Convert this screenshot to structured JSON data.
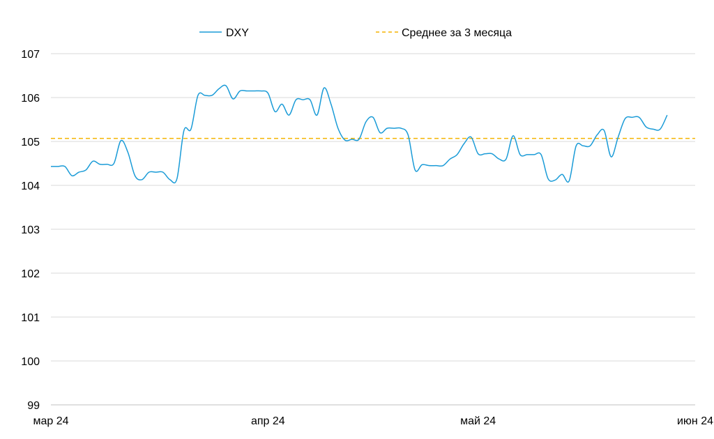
{
  "chart_data": {
    "type": "line",
    "title": "",
    "xlabel": "",
    "ylabel": "",
    "ylim": [
      99,
      107
    ],
    "yticks": [
      99,
      100,
      101,
      102,
      103,
      104,
      105,
      106,
      107
    ],
    "ytick_labels": [
      "99",
      "100",
      "101",
      "102",
      "103",
      "104",
      "105",
      "106",
      "107"
    ],
    "xlim": [
      "2024-03-01",
      "2024-06-01"
    ],
    "xticks": [
      {
        "label": "мар 24",
        "date": "2024-03-01"
      },
      {
        "label": "апр 24",
        "date": "2024-04-01"
      },
      {
        "label": "май 24",
        "date": "2024-05-01"
      },
      {
        "label": "июн 24",
        "date": "2024-06-01"
      }
    ],
    "grid": true,
    "legend_position": "top-center",
    "colors": {
      "dxy": "#1a9bd7",
      "average": "#f5b400",
      "grid": "#d9d9d9"
    },
    "series": [
      {
        "name": "DXY",
        "style": "solid",
        "x": [
          "2024-03-01",
          "2024-03-02",
          "2024-03-03",
          "2024-03-04",
          "2024-03-05",
          "2024-03-06",
          "2024-03-07",
          "2024-03-08",
          "2024-03-09",
          "2024-03-10",
          "2024-03-11",
          "2024-03-12",
          "2024-03-13",
          "2024-03-14",
          "2024-03-15",
          "2024-03-16",
          "2024-03-17",
          "2024-03-18",
          "2024-03-19",
          "2024-03-20",
          "2024-03-21",
          "2024-03-22",
          "2024-03-23",
          "2024-03-24",
          "2024-03-25",
          "2024-03-26",
          "2024-03-27",
          "2024-03-28",
          "2024-03-29",
          "2024-03-30",
          "2024-03-31",
          "2024-04-01",
          "2024-04-02",
          "2024-04-03",
          "2024-04-04",
          "2024-04-05",
          "2024-04-06",
          "2024-04-07",
          "2024-04-08",
          "2024-04-09",
          "2024-04-10",
          "2024-04-11",
          "2024-04-12",
          "2024-04-13",
          "2024-04-14",
          "2024-04-15",
          "2024-04-16",
          "2024-04-17",
          "2024-04-18",
          "2024-04-19",
          "2024-04-20",
          "2024-04-21",
          "2024-04-22",
          "2024-04-23",
          "2024-04-24",
          "2024-04-25",
          "2024-04-26",
          "2024-04-27",
          "2024-04-28",
          "2024-04-29",
          "2024-04-30",
          "2024-05-01",
          "2024-05-02",
          "2024-05-03",
          "2024-05-04",
          "2024-05-05",
          "2024-05-06",
          "2024-05-07",
          "2024-05-08",
          "2024-05-09",
          "2024-05-10",
          "2024-05-11",
          "2024-05-12",
          "2024-05-13",
          "2024-05-14",
          "2024-05-15",
          "2024-05-16",
          "2024-05-17",
          "2024-05-18",
          "2024-05-19",
          "2024-05-20",
          "2024-05-21",
          "2024-05-22",
          "2024-05-23",
          "2024-05-24",
          "2024-05-25",
          "2024-05-26",
          "2024-05-27",
          "2024-05-28",
          "2024-05-29",
          "2024-05-30",
          "2024-05-31",
          "2024-06-01"
        ],
        "values": [
          104.43,
          104.43,
          104.43,
          104.22,
          104.3,
          104.35,
          104.55,
          104.48,
          104.48,
          104.5,
          105.02,
          104.75,
          104.22,
          104.13,
          104.3,
          104.3,
          104.3,
          104.13,
          104.15,
          105.25,
          105.28,
          106.05,
          106.05,
          106.05,
          106.2,
          106.27,
          105.97,
          106.15,
          106.15,
          106.15,
          106.15,
          106.1,
          105.68,
          105.85,
          105.6,
          105.95,
          105.95,
          105.95,
          105.6,
          106.22,
          105.85,
          105.3,
          105.03,
          105.05,
          105.05,
          105.45,
          105.55,
          105.2,
          105.3,
          105.3,
          105.3,
          105.15,
          104.35,
          104.47,
          104.45,
          104.45,
          104.45,
          104.6,
          104.7,
          104.95,
          105.1,
          104.72,
          104.72,
          104.72,
          104.6,
          104.6,
          105.13,
          104.7,
          104.7,
          104.7,
          104.7,
          104.15,
          104.12,
          104.25,
          104.1,
          104.9,
          104.9,
          104.9,
          105.15,
          105.25,
          104.65,
          105.1,
          105.52,
          105.55,
          105.55,
          105.33,
          105.28,
          105.28,
          105.6,
          null,
          null,
          null,
          null
        ]
      },
      {
        "name": "Среднее за 3 месяца",
        "style": "dashed",
        "x": [
          "2024-03-01",
          "2024-06-01"
        ],
        "values": [
          105.07,
          105.07
        ]
      }
    ]
  }
}
